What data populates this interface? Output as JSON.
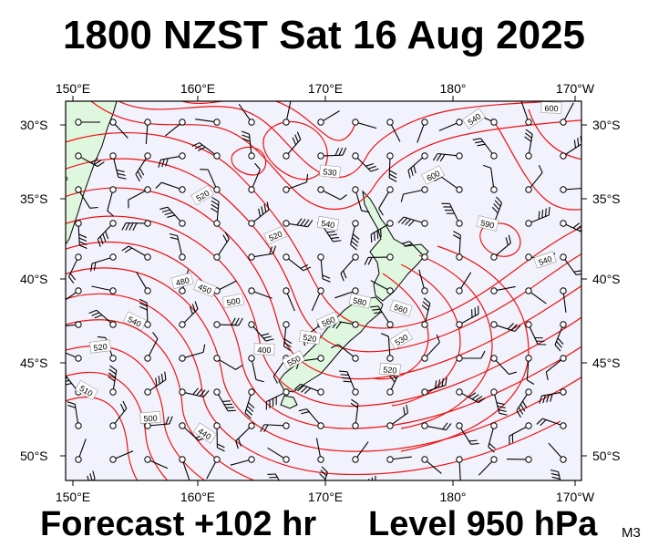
{
  "title": "1800 NZST Sat 16 Aug 2025",
  "footer": {
    "forecast": "Forecast +102 hr",
    "level": "Level 950 hPa",
    "model": "M3"
  },
  "axes": {
    "lon_labels": [
      "150°E",
      "160°E",
      "170°E",
      "180°",
      "170°W"
    ],
    "lat_labels": [
      "30°S",
      "35°S",
      "40°S",
      "45°S",
      "50°S"
    ]
  },
  "map": {
    "lon_range": [
      150,
      190
    ],
    "lat_range": [
      -51.5,
      -28
    ],
    "ocean_color": "#f2f2fc",
    "land_color": "#dff7df",
    "contour_color": "#ee1111",
    "contour_labels": [
      "540",
      "600",
      "520",
      "530",
      "600",
      "540",
      "520",
      "590",
      "540",
      "560",
      "480",
      "450",
      "500",
      "540",
      "520",
      "510",
      "500",
      "440",
      "400",
      "530",
      "520",
      "550",
      "520",
      "560",
      "580"
    ],
    "wind_barbs": "station circles with wind barbs on a regular grid"
  }
}
